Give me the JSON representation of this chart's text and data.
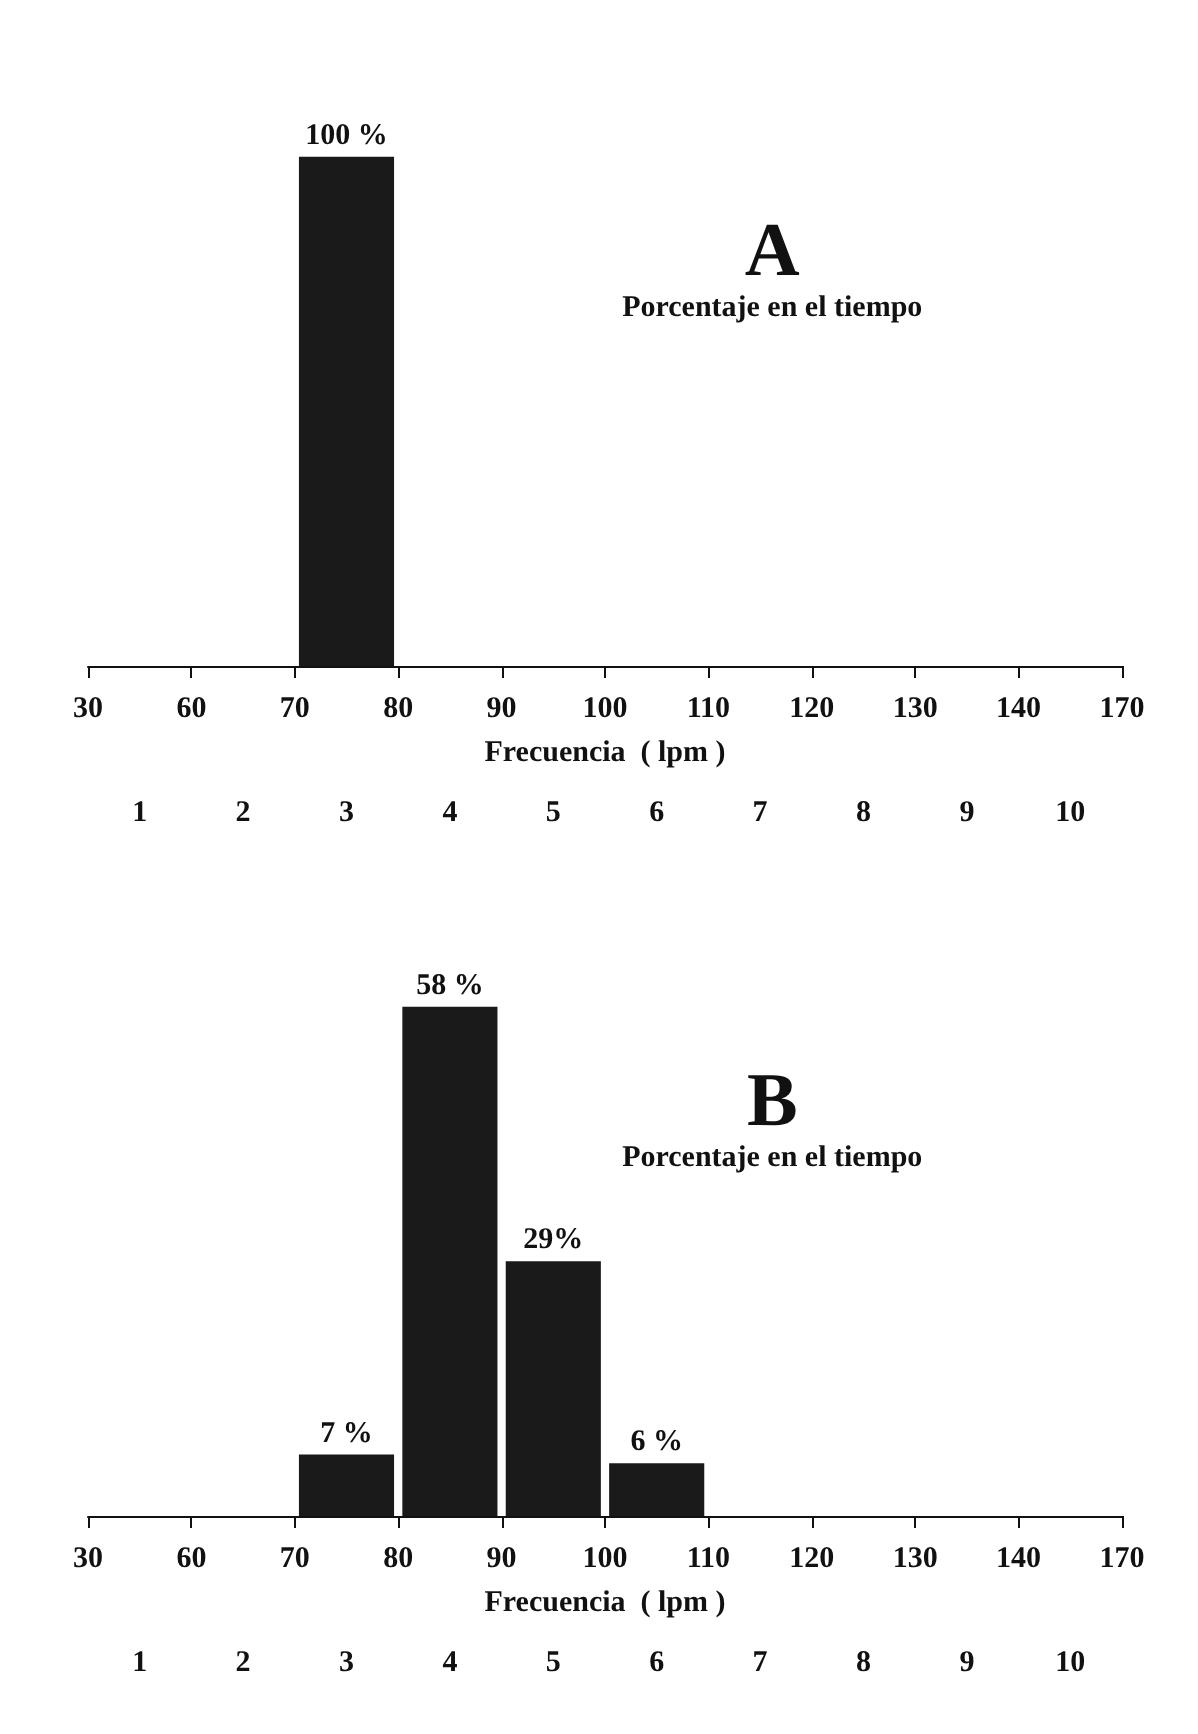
{
  "chart_data": [
    {
      "type": "bar",
      "title": "A",
      "subtitle": "Porcentaje en el tiempo",
      "xlabel": "Frecuencia  ( lpm )",
      "annotations": [
        "30",
        "60",
        "70",
        "80",
        "90",
        "100",
        "110",
        "120",
        "130",
        "140",
        "170"
      ],
      "categories": [
        "1",
        "2",
        "3",
        "4",
        "5",
        "6",
        "7",
        "8",
        "9",
        "10"
      ],
      "values": [
        null,
        null,
        100,
        null,
        null,
        null,
        null,
        null,
        null,
        null
      ],
      "value_labels": [
        null,
        null,
        "100 %",
        null,
        null,
        null,
        null,
        null,
        null,
        null
      ],
      "color": "#1a1a1a",
      "tick_labels": "x"
    },
    {
      "type": "bar",
      "title": "B",
      "subtitle": "Porcentaje en el tiempo",
      "xlabel": "Frecuencia  ( lpm )",
      "annotations": [
        "30",
        "60",
        "70",
        "80",
        "90",
        "100",
        "110",
        "120",
        "130",
        "140",
        "170"
      ],
      "categories": [
        "1",
        "2",
        "3",
        "4",
        "5",
        "6",
        "7",
        "8",
        "9",
        "10"
      ],
      "values": [
        null,
        null,
        7,
        58,
        29,
        6,
        null,
        null,
        null,
        null
      ],
      "value_labels": [
        null,
        null,
        "7 %",
        "58 %",
        "29%",
        "6 %",
        null,
        null,
        null,
        null
      ],
      "color": "#1a1a1a",
      "tick_labels": "x"
    }
  ]
}
